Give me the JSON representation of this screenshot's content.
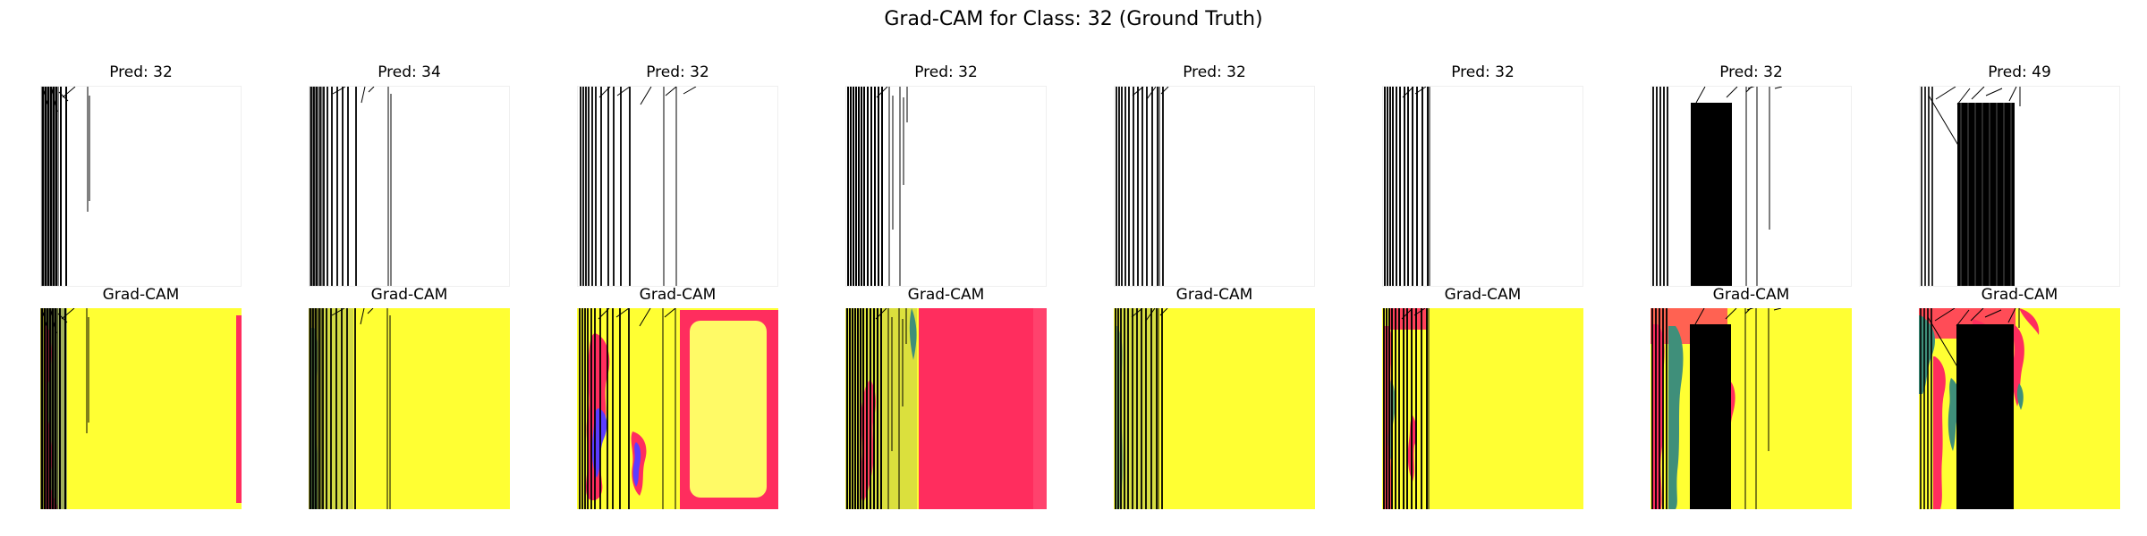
{
  "figure": {
    "title": "Grad-CAM for Class: 32 (Ground Truth)"
  },
  "colors": {
    "signal": "#000000",
    "cam_base": "#ffff33",
    "cam_hot": "#ff2d5e",
    "cam_mid": "#3f8f7a",
    "cam_blue": "#5b3cff",
    "cam_pale": "#fffa66"
  },
  "panels": [
    {
      "pred_label": "Pred: 32",
      "cam_label": "Grad-CAM"
    },
    {
      "pred_label": "Pred: 34",
      "cam_label": "Grad-CAM"
    },
    {
      "pred_label": "Pred: 32",
      "cam_label": "Grad-CAM"
    },
    {
      "pred_label": "Pred: 32",
      "cam_label": "Grad-CAM"
    },
    {
      "pred_label": "Pred: 32",
      "cam_label": "Grad-CAM"
    },
    {
      "pred_label": "Pred: 32",
      "cam_label": "Grad-CAM"
    },
    {
      "pred_label": "Pred: 32",
      "cam_label": "Grad-CAM"
    },
    {
      "pred_label": "Pred: 49",
      "cam_label": "Grad-CAM"
    }
  ]
}
